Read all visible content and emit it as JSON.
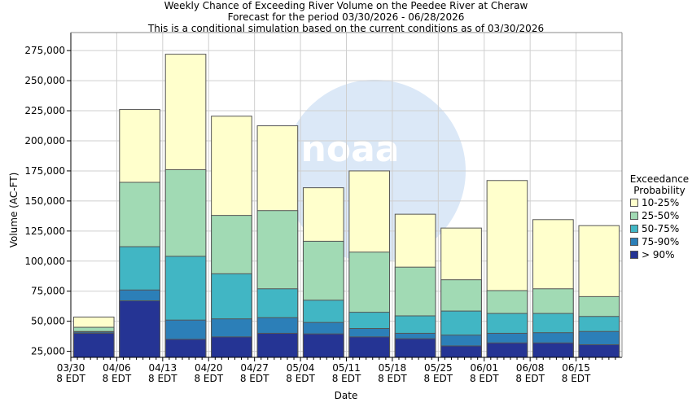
{
  "titles": [
    "Weekly Chance of Exceeding River Volume on the Peedee River at Cheraw",
    "Forecast for the period 03/30/2026 - 06/28/2026",
    "This is a conditional simulation based on the current conditions as of 03/30/2026"
  ],
  "legend": {
    "title_line1": "Exceedance",
    "title_line2": "Probability"
  },
  "chart_data": {
    "type": "bar",
    "stacked": true,
    "title": "Weekly Chance of Exceeding River Volume on the Peedee River at Cheraw",
    "subtitle": "Forecast for the period 03/30/2026 - 06/28/2026",
    "subtitle2": "This is a conditional simulation based on the current conditions as of 03/30/2026",
    "xlabel": "Date",
    "ylabel": "Volume (AC-FT)",
    "ylim": [
      20000,
      290000
    ],
    "yticks": [
      25000,
      50000,
      75000,
      100000,
      125000,
      150000,
      175000,
      200000,
      225000,
      250000,
      275000
    ],
    "ytick_labels": [
      "25,000",
      "50,000",
      "75,000",
      "100,000",
      "125,000",
      "150,000",
      "175,000",
      "200,000",
      "225,000",
      "250,000",
      "275,000"
    ],
    "xtick_labels": [
      [
        "03/30",
        "8 EDT"
      ],
      [
        "04/06",
        "8 EDT"
      ],
      [
        "04/13",
        "8 EDT"
      ],
      [
        "04/20",
        "8 EDT"
      ],
      [
        "04/27",
        "8 EDT"
      ],
      [
        "05/04",
        "8 EDT"
      ],
      [
        "05/11",
        "8 EDT"
      ],
      [
        "05/18",
        "8 EDT"
      ],
      [
        "05/25",
        "8 EDT"
      ],
      [
        "06/01",
        "8 EDT"
      ],
      [
        "06/08",
        "8 EDT"
      ],
      [
        "06/15",
        "8 EDT"
      ]
    ],
    "grid": true,
    "legend_position": "right",
    "series": [
      {
        "name": "> 90%",
        "color": "#253494",
        "top": [
          40000,
          67000,
          35000,
          37000,
          40000,
          39500,
          37000,
          35500,
          29500,
          32000,
          32000,
          30500
        ]
      },
      {
        "name": "75-90%",
        "color": "#2c7fb8",
        "top": [
          41000,
          76000,
          51000,
          52000,
          53000,
          49000,
          44000,
          40000,
          38500,
          40000,
          40500,
          41500
        ]
      },
      {
        "name": "50-75%",
        "color": "#41b6c4",
        "top": [
          41500,
          112000,
          104000,
          89500,
          77000,
          67500,
          57500,
          54500,
          58500,
          56500,
          56500,
          54000
        ]
      },
      {
        "name": "25-50%",
        "color": "#a1dab4",
        "top": [
          45000,
          165500,
          176000,
          138000,
          142000,
          116500,
          107500,
          95000,
          84500,
          75500,
          77000,
          70500
        ]
      },
      {
        "name": "10-25%",
        "color": "#ffffcc",
        "top": [
          53500,
          226000,
          272000,
          220500,
          212500,
          161000,
          175000,
          139000,
          127500,
          167000,
          134500,
          129500
        ]
      }
    ],
    "colors": {
      "bar_outline": "#555555",
      "grid": "#cfcfcf",
      "axis": "#000000",
      "watermark": "#dbe8f7"
    }
  }
}
